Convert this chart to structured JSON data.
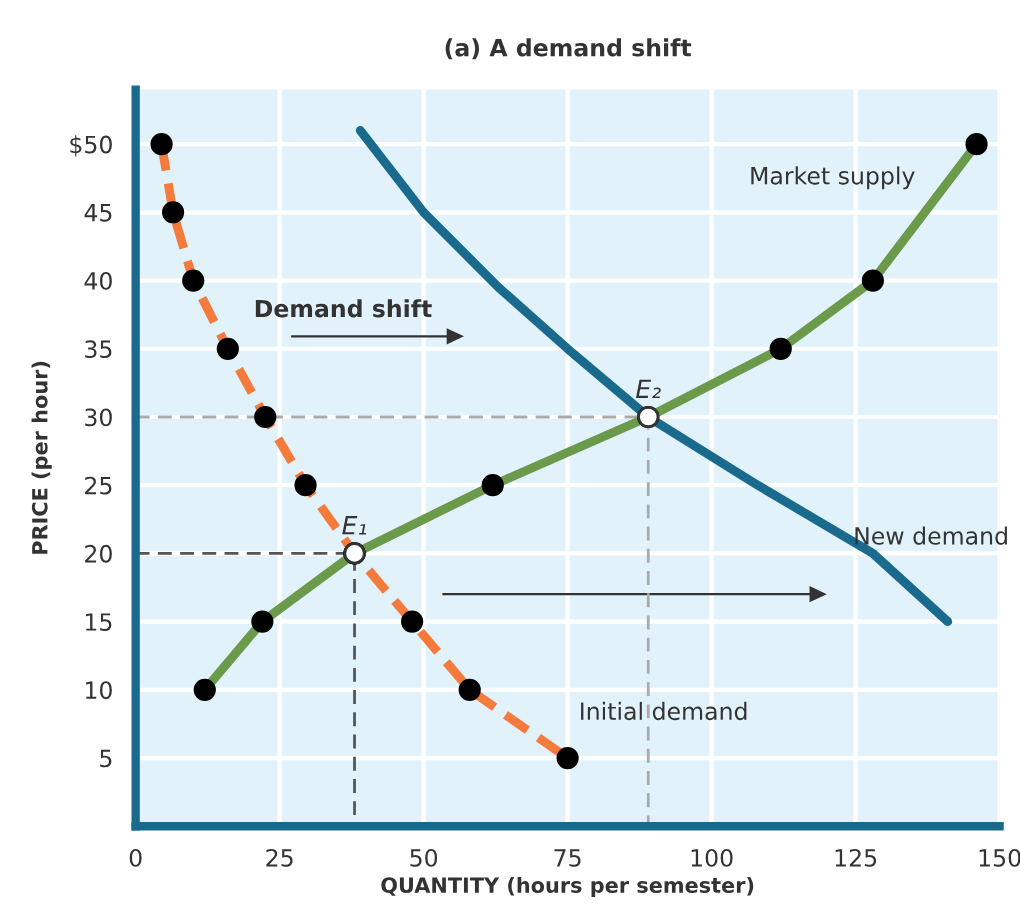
{
  "chart_data": {
    "type": "line",
    "title": "(a) A demand shift",
    "xlabel": "QUANTITY (hours per semester)",
    "ylabel": "PRICE (per hour)",
    "xlim": [
      0,
      150
    ],
    "xticks": [
      0,
      25,
      50,
      75,
      100,
      125,
      150
    ],
    "ylim": [
      0,
      54
    ],
    "yticks": [
      5,
      10,
      15,
      20,
      25,
      30,
      35,
      40,
      45,
      {
        "value": 50,
        "label": "$50"
      }
    ],
    "grid": true,
    "marker": "circle",
    "series": [
      {
        "name": "Initial demand",
        "color": "#f47b3b",
        "line_style": "dashed",
        "x": [
          4.5,
          6.5,
          10,
          16,
          22.5,
          29.5,
          38,
          48,
          58,
          75
        ],
        "values": [
          50,
          45,
          40,
          35,
          30,
          25,
          20,
          15,
          10,
          5
        ]
      },
      {
        "name": "New demand",
        "color": "#1a6a8e",
        "marker": "none",
        "x": [
          39,
          50,
          63,
          75,
          89,
          108,
          128,
          141
        ],
        "values": [
          51,
          45,
          39.5,
          35,
          30,
          25,
          20,
          15
        ]
      },
      {
        "name": "Market supply",
        "color": "#6a9a4a",
        "x": [
          12,
          22,
          38,
          62,
          89,
          112,
          128,
          146
        ],
        "values": [
          10,
          15,
          20,
          25,
          30,
          35,
          40,
          50
        ]
      },
      {
        "type": "line",
        "color": "#555555",
        "line_style": "dashed",
        "marker": "none",
        "x": [
          0,
          38,
          38
        ],
        "values": [
          20,
          20,
          0
        ]
      },
      {
        "type": "line",
        "color": "#aaaaaa",
        "line_style": "dashed",
        "marker": "none",
        "x": [
          0,
          89,
          89
        ],
        "values": [
          30,
          30,
          0
        ]
      }
    ],
    "annotations": [
      "Demand shift",
      {
        "text": "E₁",
        "x": 38,
        "y": 20
      },
      {
        "text": "E₂",
        "x": 89,
        "y": 30
      }
    ]
  }
}
